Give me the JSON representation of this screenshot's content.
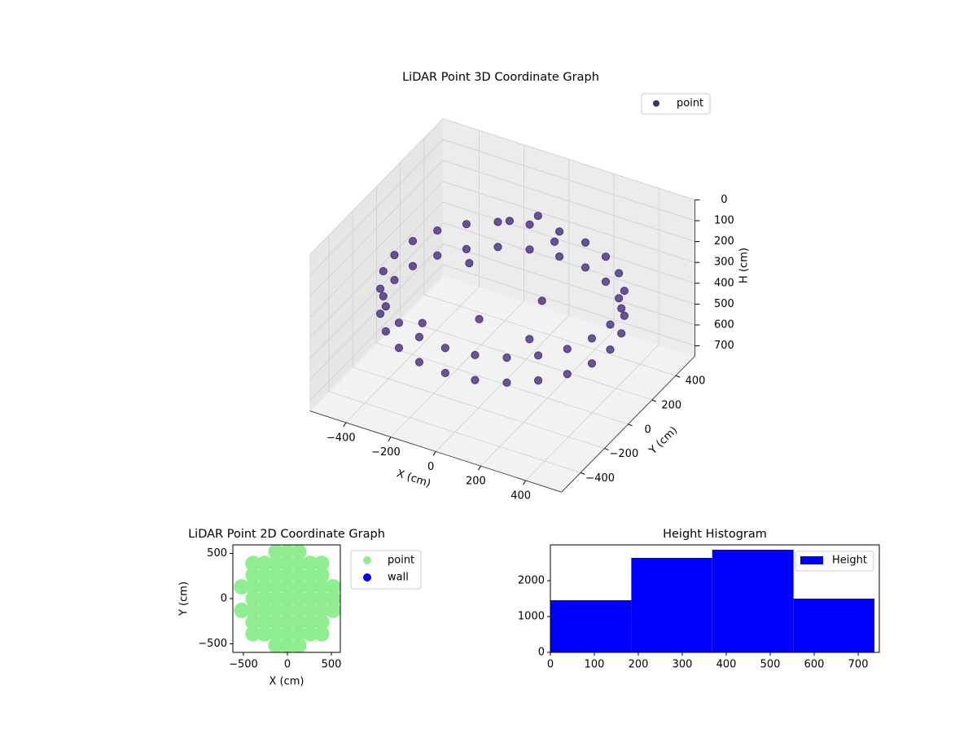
{
  "chart_data": [
    {
      "type": "scatter3d",
      "title": "LiDAR Point 3D Coordinate Graph",
      "xlabel": "X (cm)",
      "ylabel": "Y (cm)",
      "zlabel": "H (cm)",
      "xlim": [
        -560,
        560
      ],
      "ylim": [
        -560,
        560
      ],
      "zlim": [
        750,
        0
      ],
      "xticks": [
        {
          "value": -400,
          "label": "−400"
        },
        {
          "value": -200,
          "label": "−200"
        },
        0,
        200,
        400
      ],
      "yticks": [
        {
          "value": -400,
          "label": "−400"
        },
        {
          "value": -200,
          "label": "−200"
        },
        0,
        200,
        400
      ],
      "zticks": [
        0,
        100,
        200,
        300,
        400,
        500,
        600,
        700
      ],
      "legend": "upper right",
      "series": [
        {
          "name": "point",
          "color": "#472c7a",
          "x": [
            480,
            464,
            416,
            339,
            240,
            124,
            0,
            -124,
            -240,
            -339,
            -416,
            -464,
            -480,
            -464,
            -416,
            -339,
            -240,
            -124,
            0,
            124,
            240,
            339,
            416,
            464,
            480,
            464,
            416,
            339,
            240,
            124,
            0,
            -124,
            -240,
            -339,
            -416,
            -464,
            -480,
            -464,
            -416,
            -339,
            -240,
            -124,
            0,
            124,
            240,
            339,
            416,
            464,
            -100,
            0,
            100,
            -200,
            150,
            -50,
            200,
            -250
          ],
          "y": [
            0,
            124,
            240,
            339,
            416,
            464,
            480,
            464,
            416,
            339,
            240,
            124,
            0,
            -124,
            -240,
            -339,
            -416,
            -464,
            -480,
            -464,
            -416,
            -339,
            -240,
            -124,
            0,
            124,
            240,
            339,
            416,
            464,
            480,
            464,
            416,
            339,
            240,
            124,
            0,
            -124,
            -240,
            -339,
            -416,
            -464,
            -480,
            -464,
            -416,
            -339,
            -240,
            -124,
            250,
            300,
            250,
            100,
            50,
            -100,
            -150,
            -200
          ],
          "z": [
            300,
            300,
            300,
            300,
            300,
            300,
            300,
            300,
            300,
            300,
            300,
            300,
            300,
            300,
            300,
            300,
            300,
            300,
            300,
            300,
            300,
            300,
            300,
            300,
            420,
            420,
            420,
            420,
            420,
            420,
            420,
            420,
            420,
            420,
            420,
            420,
            420,
            420,
            420,
            420,
            420,
            420,
            420,
            420,
            420,
            420,
            420,
            420,
            150,
            120,
            180,
            300,
            330,
            400,
            380,
            430
          ]
        }
      ]
    },
    {
      "type": "scatter",
      "title": "LiDAR Point 2D Coordinate Graph",
      "xlabel": "X (cm)",
      "ylabel": "Y (cm)",
      "xlim": [
        -620,
        602
      ],
      "ylim": [
        -595,
        595
      ],
      "xticks": [
        {
          "value": -500,
          "label": "−500"
        },
        0,
        500
      ],
      "yticks": [
        {
          "value": -500,
          "label": "−500"
        },
        0,
        500
      ],
      "legend": "outside upper right",
      "series": [
        {
          "name": "point",
          "color": "#90ee90",
          "x": [
            -130,
            0,
            130,
            -390,
            -260,
            -130,
            0,
            130,
            260,
            390,
            -390,
            -260,
            -130,
            0,
            130,
            260,
            390,
            -520,
            -390,
            -260,
            -130,
            0,
            130,
            260,
            390,
            520,
            -390,
            -260,
            -130,
            0,
            130,
            260,
            390,
            520,
            -520,
            -390,
            -260,
            -130,
            0,
            130,
            260,
            390,
            520,
            -390,
            -260,
            -130,
            0,
            130,
            260,
            390,
            -390,
            -260,
            -130,
            0,
            130,
            260,
            390,
            -130,
            0,
            130
          ],
          "y": [
            520,
            520,
            520,
            390,
            390,
            390,
            390,
            390,
            390,
            390,
            260,
            260,
            260,
            260,
            260,
            260,
            260,
            130,
            130,
            130,
            130,
            130,
            130,
            130,
            130,
            130,
            0,
            0,
            0,
            0,
            0,
            0,
            0,
            0,
            -130,
            -130,
            -130,
            -130,
            -130,
            -130,
            -130,
            -130,
            -130,
            -260,
            -260,
            -260,
            -260,
            -260,
            -260,
            -260,
            -390,
            -390,
            -390,
            -390,
            -390,
            -390,
            -390,
            -520,
            -520,
            -520
          ]
        },
        {
          "name": "wall",
          "color": "#0000ff",
          "x": [],
          "y": []
        }
      ]
    },
    {
      "type": "histogram",
      "title": "Height Histogram",
      "name": "Height",
      "color": "#0000ff",
      "bins": [
        0,
        184,
        368,
        553,
        737
      ],
      "counts": [
        1455,
        2636,
        2864,
        1500
      ],
      "xlim": [
        0,
        748
      ],
      "ylim": [
        0,
        3000
      ],
      "xticks": [
        0,
        100,
        200,
        300,
        400,
        500,
        600,
        700
      ],
      "yticks": [
        0,
        1000,
        2000
      ],
      "legend": "upper right"
    }
  ]
}
